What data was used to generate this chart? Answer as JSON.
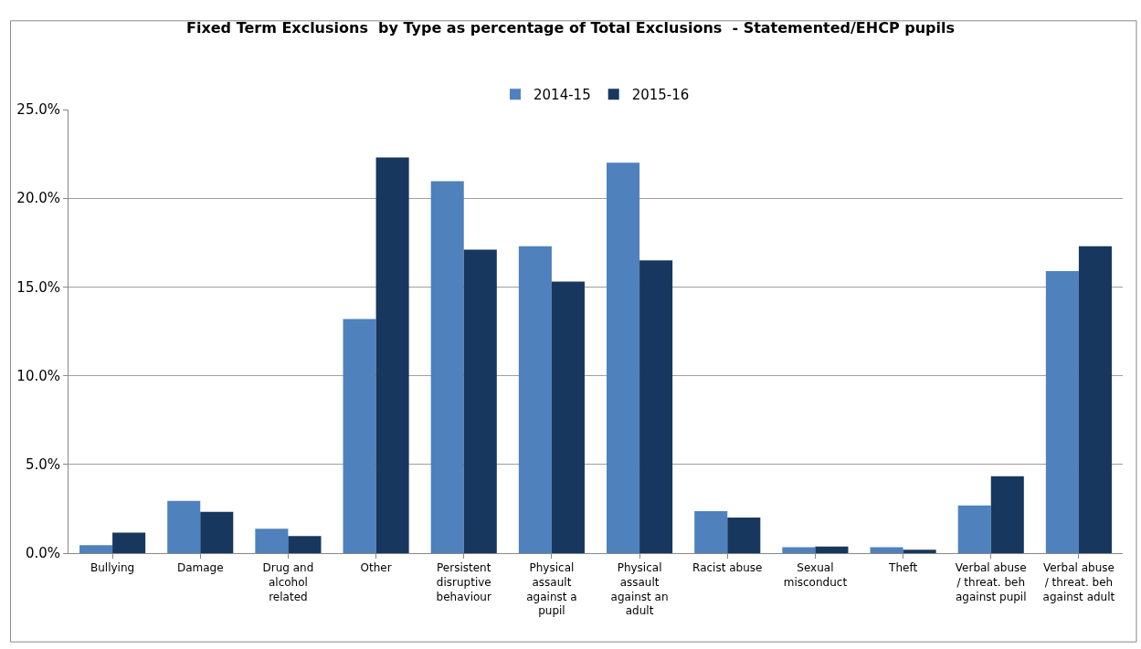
{
  "chart_data": {
    "type": "bar",
    "title": "Fixed Term Exclusions  by Type as percentage of Total Exclusions  - Statemented/EHCP pupils",
    "categories": [
      "Bullying",
      "Damage",
      "Drug and alcohol related",
      "Other",
      "Persistent disruptive behaviour",
      "Physical assault against a pupil",
      "Physical assault against an adult",
      "Racist abuse",
      "Sexual misconduct",
      "Theft",
      "Verbal abuse / threat. beh against pupil",
      "Verbal abuse / threat. beh against adult"
    ],
    "series": [
      {
        "name": "2014-15",
        "color": "#4f81bd",
        "values": [
          0.45,
          2.94,
          1.37,
          13.2,
          20.96,
          17.3,
          22.0,
          2.36,
          0.33,
          0.33,
          2.69,
          15.9
        ]
      },
      {
        "name": "2015-16",
        "color": "#17375e",
        "values": [
          1.16,
          2.33,
          0.96,
          22.3,
          17.1,
          15.3,
          16.5,
          2.0,
          0.37,
          0.19,
          4.34,
          17.3
        ]
      }
    ],
    "ylim": [
      0,
      25
    ],
    "yticks": [
      {
        "value": 0,
        "label": "0.0%"
      },
      {
        "value": 5,
        "label": "5.0%"
      },
      {
        "value": 10,
        "label": "10.0%"
      },
      {
        "value": 15,
        "label": "15.0%"
      },
      {
        "value": 20,
        "label": "20.0%"
      },
      {
        "value": 25,
        "label": "25.0%"
      }
    ],
    "grid": "y",
    "legend": "top"
  }
}
